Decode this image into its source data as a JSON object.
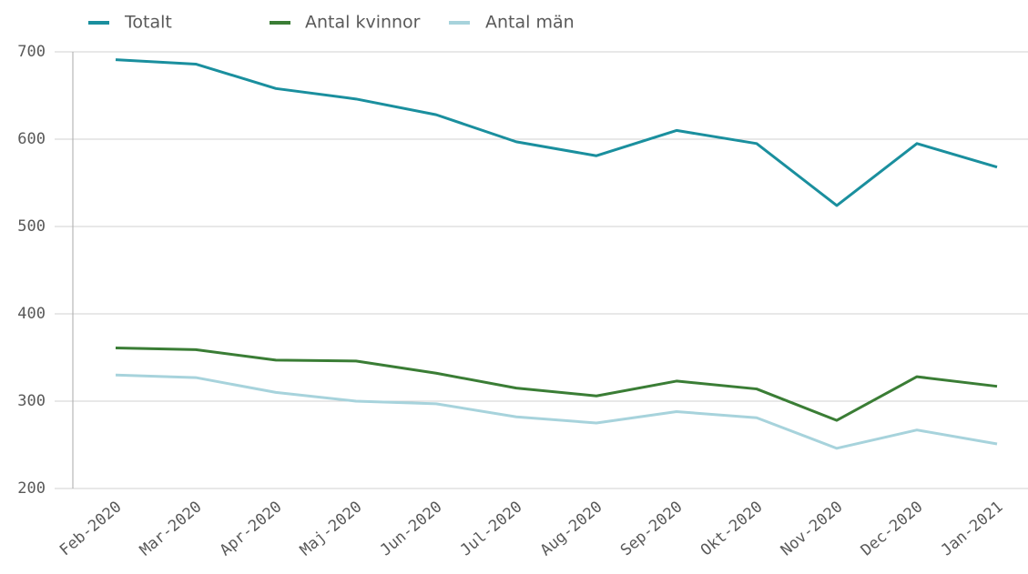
{
  "chart_data": {
    "type": "line",
    "categories": [
      "Feb-2020",
      "Mar-2020",
      "Apr-2020",
      "Maj-2020",
      "Jun-2020",
      "Jul-2020",
      "Aug-2020",
      "Sep-2020",
      "Okt-2020",
      "Nov-2020",
      "Dec-2020",
      "Jan-2021"
    ],
    "series": [
      {
        "name": "Totalt",
        "color": "#1a8f9e",
        "values": [
          691,
          686,
          658,
          646,
          628,
          597,
          581,
          610,
          595,
          524,
          595,
          568
        ]
      },
      {
        "name": "Antal kvinnor",
        "color": "#3a7d35",
        "values": [
          361,
          359,
          347,
          346,
          332,
          315,
          306,
          323,
          314,
          278,
          328,
          317
        ]
      },
      {
        "name": "Antal män",
        "color": "#a7d3dc",
        "values": [
          330,
          327,
          310,
          300,
          297,
          282,
          275,
          288,
          281,
          246,
          267,
          251
        ]
      }
    ],
    "ylim": [
      200,
      700
    ],
    "yticks": [
      200,
      300,
      400,
      500,
      600,
      700
    ],
    "grid": true,
    "legend": "top"
  }
}
